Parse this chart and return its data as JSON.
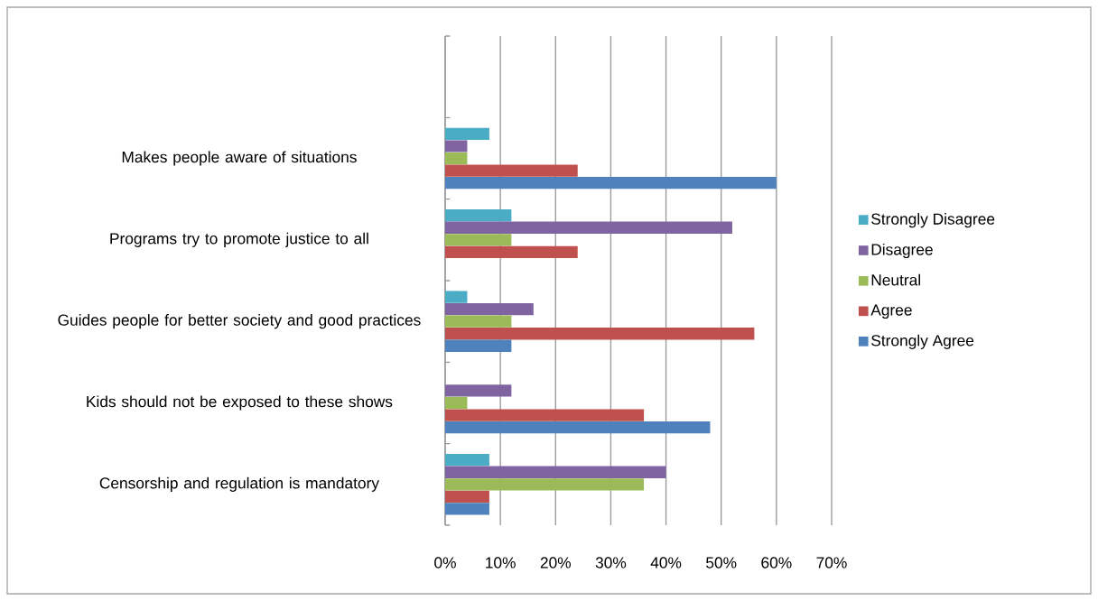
{
  "chart_data": {
    "type": "bar",
    "orientation": "horizontal",
    "categories": [
      null,
      "Makes people aware of situations",
      "Programs try to promote justice to all",
      "Guides people for better society and good practices",
      "Kids should not be exposed to these shows",
      "Censorship and regulation is mandatory"
    ],
    "series": [
      {
        "name": "Strongly Disagree",
        "color": "#4bacc6",
        "values": [
          null,
          8,
          12,
          4,
          0,
          8
        ]
      },
      {
        "name": "Disagree",
        "color": "#8064a2",
        "values": [
          null,
          4,
          52,
          16,
          12,
          40
        ]
      },
      {
        "name": "Neutral",
        "color": "#9bbb59",
        "values": [
          null,
          4,
          12,
          12,
          4,
          36
        ]
      },
      {
        "name": "Agree",
        "color": "#c0504d",
        "values": [
          null,
          24,
          24,
          56,
          36,
          8
        ]
      },
      {
        "name": "Strongly Agree",
        "color": "#4f81bd",
        "values": [
          null,
          60,
          0,
          12,
          48,
          8
        ]
      }
    ],
    "xlim": [
      0,
      70
    ],
    "xticks": [
      {
        "value": 0,
        "label": "0%"
      },
      {
        "value": 10,
        "label": "10%"
      },
      {
        "value": 20,
        "label": "20%"
      },
      {
        "value": 30,
        "label": "30%"
      },
      {
        "value": 40,
        "label": "40%"
      },
      {
        "value": 50,
        "label": "50%"
      },
      {
        "value": 60,
        "label": "60%"
      },
      {
        "value": 70,
        "label": "70%"
      }
    ],
    "grid": "x",
    "legend": "right"
  }
}
